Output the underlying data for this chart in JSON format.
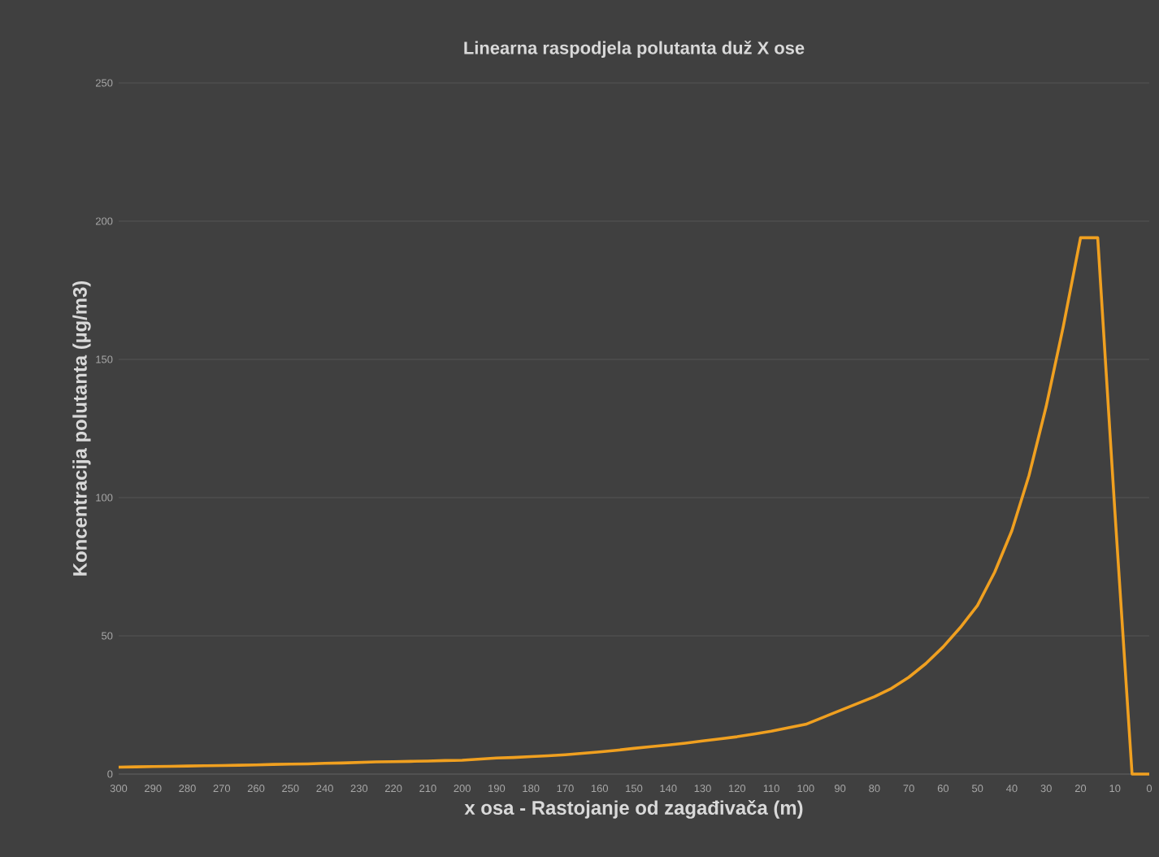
{
  "chart_data": {
    "type": "line",
    "title": "Linearna raspodjela polutanta duž X ose",
    "xlabel": "x osa - Rastojanje od zagađivača (m)",
    "ylabel": "Koncentracija polutanta (µg/m3)",
    "x": [
      300,
      295,
      290,
      285,
      280,
      275,
      270,
      265,
      260,
      255,
      250,
      245,
      240,
      235,
      230,
      225,
      220,
      215,
      210,
      205,
      200,
      195,
      190,
      185,
      180,
      175,
      170,
      165,
      160,
      155,
      150,
      145,
      140,
      135,
      130,
      125,
      120,
      115,
      110,
      105,
      100,
      95,
      90,
      85,
      80,
      75,
      70,
      65,
      60,
      55,
      50,
      45,
      40,
      35,
      30,
      25,
      20,
      15,
      10,
      5,
      0
    ],
    "series": [
      {
        "color": "#f0a020",
        "values": [
          2.5,
          2.6,
          2.7,
          2.8,
          2.9,
          3,
          3.1,
          3.2,
          3.3,
          3.5,
          3.6,
          3.7,
          3.9,
          4,
          4.2,
          4.4,
          4.5,
          4.6,
          4.7,
          4.9,
          5,
          5.4,
          5.8,
          6,
          6.3,
          6.6,
          7,
          7.5,
          8,
          8.6,
          9.3,
          9.9,
          10.5,
          11.2,
          12,
          12.7,
          13.5,
          14.5,
          15.5,
          16.8,
          18,
          20.5,
          23,
          25.5,
          28,
          31,
          35,
          40,
          46,
          53,
          61,
          73,
          88,
          108,
          133,
          162,
          194,
          194,
          95,
          0,
          0
        ]
      }
    ],
    "xlim": [
      300,
      0
    ],
    "xticks": [
      300,
      290,
      280,
      270,
      260,
      250,
      240,
      230,
      220,
      210,
      200,
      190,
      180,
      170,
      160,
      150,
      140,
      130,
      120,
      110,
      100,
      90,
      80,
      70,
      60,
      50,
      40,
      30,
      20,
      10,
      0
    ],
    "ylim": [
      0,
      250
    ],
    "yticks": [
      0,
      50,
      100,
      150,
      200,
      250
    ],
    "grid": "y",
    "marker": "none",
    "line_style": "solid"
  }
}
